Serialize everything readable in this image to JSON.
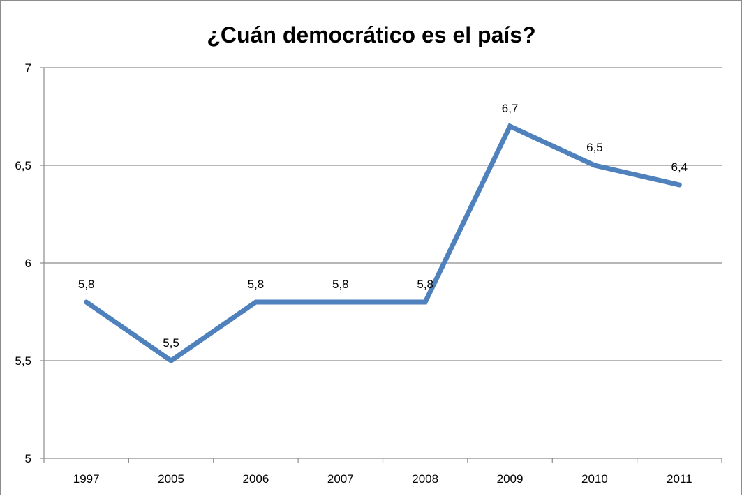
{
  "chart_data": {
    "type": "line",
    "title": "¿Cuán democrático es el país?",
    "xlabel": "",
    "ylabel": "",
    "categories": [
      "1997",
      "2005",
      "2006",
      "2007",
      "2008",
      "2009",
      "2010",
      "2011"
    ],
    "series": [
      {
        "values": [
          5.8,
          5.5,
          5.8,
          5.8,
          5.8,
          6.7,
          6.5,
          6.4
        ],
        "data_labels": [
          "5,8",
          "5,5",
          "5,8",
          "5,8",
          "5,8",
          "6,7",
          "6,5",
          "6,4"
        ],
        "color": "#4f81bd"
      }
    ],
    "ylim": [
      5,
      7
    ],
    "yticks": [
      5,
      5.5,
      6,
      6.5,
      7
    ],
    "ytick_labels": [
      "5",
      "5,5",
      "6",
      "6,5",
      "7"
    ],
    "grid": true,
    "legend": "none",
    "gridline_color": "#8c8c8c"
  }
}
